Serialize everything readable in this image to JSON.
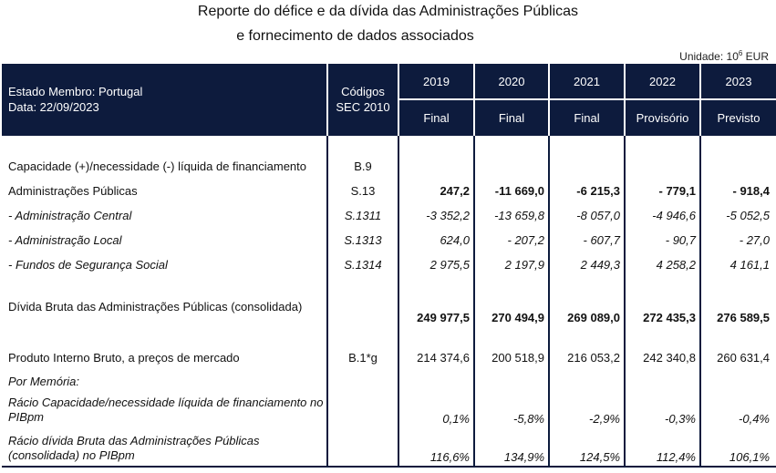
{
  "title_line1": "Reporte do défice e da dívida das Administrações Públicas",
  "title_line2": "e fornecimento de dados associados",
  "unit_prefix": "Unidade: 10",
  "unit_exp": "6",
  "unit_suffix": " EUR",
  "header": {
    "state": "Estado Membro: Portugal",
    "date": "Data: 22/09/2023",
    "codes_line1": "Códigos",
    "codes_line2": "SEC 2010",
    "years": [
      "2019",
      "2020",
      "2021",
      "2022",
      "2023"
    ],
    "status": [
      "Final",
      "Final",
      "Final",
      "Provisório",
      "Previsto"
    ]
  },
  "rows": [
    {
      "label": "Capacidade (+)/necessidade (-) líquida de financiamento",
      "code": "B.9",
      "values": [
        "",
        "",
        "",
        "",
        ""
      ]
    },
    {
      "label": "Administrações Públicas",
      "code": "S.13",
      "values": [
        "247,2",
        "-11 669,0",
        "-6 215,3",
        "- 779,1",
        "- 918,4"
      ]
    },
    {
      "label": " - Administração Central",
      "code": "S.1311",
      "values": [
        "-3 352,2",
        "-13 659,8",
        "-8 057,0",
        "-4 946,6",
        "-5 052,5"
      ]
    },
    {
      "label": " - Administração Local",
      "code": "S.1313",
      "values": [
        "624,0",
        "- 207,2",
        "- 607,7",
        "- 90,7",
        "- 27,0"
      ]
    },
    {
      "label": " - Fundos de Segurança Social",
      "code": "S.1314",
      "values": [
        "2 975,5",
        "2 197,9",
        "2 449,3",
        "4 258,2",
        "4 161,1"
      ]
    },
    {
      "label": "Dívida Bruta das Administrações Públicas (consolidada)",
      "code": "",
      "values": [
        "249 977,5",
        "270 494,9",
        "269 089,0",
        "272 435,3",
        "276 589,5"
      ]
    },
    {
      "label": "Produto Interno Bruto, a preços de mercado",
      "code": "B.1*g",
      "values": [
        "214 374,6",
        "200 518,9",
        "216 053,2",
        "242 340,8",
        "260 631,4"
      ]
    },
    {
      "label": "Por Memória:",
      "code": "",
      "values": [
        "",
        "",
        "",
        "",
        ""
      ]
    },
    {
      "label": "Rácio Capacidade/necessidade líquida de financiamento no",
      "label2": "PIBpm",
      "code": "",
      "values": [
        "0,1%",
        "-5,8%",
        "-2,9%",
        "-0,3%",
        "-0,4%"
      ]
    },
    {
      "label": "Rácio dívida Bruta das Administrações Públicas",
      "label2": "(consolidada) no PIBpm",
      "code": "",
      "values": [
        "116,6%",
        "134,9%",
        "124,5%",
        "112,4%",
        "106,1%"
      ]
    }
  ]
}
